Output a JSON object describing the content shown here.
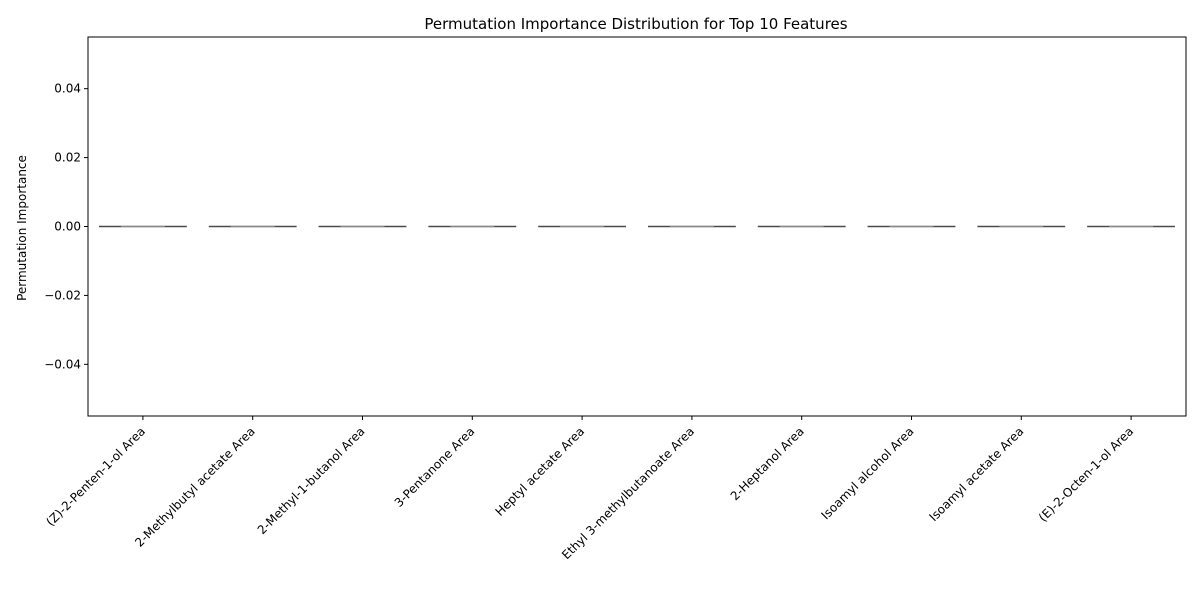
{
  "chart_data": {
    "type": "box",
    "title": "Permutation Importance Distribution for Top 10 Features",
    "xlabel": "",
    "ylabel": "Permutation Importance",
    "ylim": [
      -0.055,
      0.055
    ],
    "yticks": [
      -0.04,
      -0.02,
      0.0,
      0.02,
      0.04
    ],
    "ytick_labels": [
      "−0.04",
      "−0.02",
      "0.00",
      "0.02",
      "0.04"
    ],
    "categories": [
      "(Z)-2-Penten-1-ol Area",
      "2-Methylbutyl acetate Area",
      "2-Methyl-1-butanol Area",
      "3-Pentanone Area",
      "Heptyl acetate Area",
      "Ethyl 3-methylbutanoate Area",
      "2-Heptanol Area",
      "Isoamyl alcohol Area",
      "Isoamyl acetate Area",
      "(E)-2-Octen-1-ol Area"
    ],
    "values": [
      0,
      0,
      0,
      0,
      0,
      0,
      0,
      0,
      0,
      0
    ],
    "grid": false,
    "colors": {
      "box_line": "#4a4a4a",
      "axis": "#000000"
    }
  }
}
